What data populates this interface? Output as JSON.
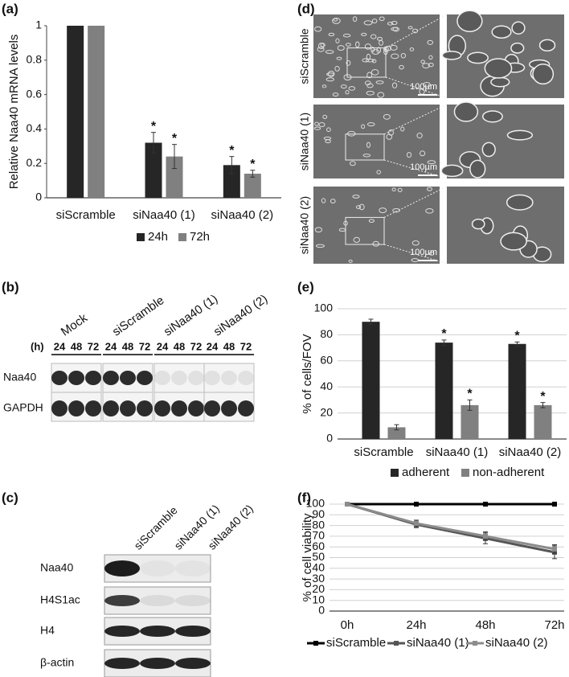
{
  "panels": {
    "labels": [
      "(a)",
      "(b)",
      "(c)",
      "(d)",
      "(e)",
      "(f)"
    ]
  },
  "blot_b": {
    "columns": [
      "Mock",
      "siScramble",
      "siNaa40 (1)",
      "siNaa40 (2)"
    ],
    "hours_label": "(h)",
    "times": [
      "24",
      "48",
      "72"
    ],
    "rows": [
      "Naa40",
      "GAPDH"
    ]
  },
  "blot_c": {
    "columns": [
      "siScramble",
      "siNaa40 (1)",
      "siNaa40 (2)"
    ],
    "rows": [
      "Naa40",
      "H4S1ac",
      "H4",
      "β-actin"
    ]
  },
  "micrographs": {
    "rows": [
      "siScramble",
      "siNaa40 (1)",
      "siNaa40 (2)"
    ],
    "scale_bar": "100µm"
  },
  "chart_data": [
    {
      "type": "bar",
      "y_label": "Relative Naa40 mRNA levels",
      "categories": [
        "siScramble",
        "siNaa40 (1)",
        "siNaa40 (2)"
      ],
      "series": [
        {
          "name": "24h",
          "color": "#262626",
          "values": [
            1,
            0.32,
            0.19
          ],
          "errors": [
            0,
            0.06,
            0.05
          ],
          "significance": [
            null,
            "*",
            "*"
          ]
        },
        {
          "name": "72h",
          "color": "#808080",
          "values": [
            1,
            0.24,
            0.14
          ],
          "errors": [
            0,
            0.07,
            0.02
          ],
          "significance": [
            null,
            "*",
            "*"
          ]
        }
      ],
      "ylim": [
        0,
        1
      ],
      "yticks": [
        0,
        0.2,
        0.4,
        0.6,
        0.8,
        1
      ],
      "grid": false,
      "legend": "bottom"
    },
    {
      "type": "bar",
      "y_label": "% of cells/FOV",
      "categories": [
        "siScramble",
        "siNaa40 (1)",
        "siNaa40 (2)"
      ],
      "series": [
        {
          "name": "adherent",
          "color": "#262626",
          "values": [
            90,
            74,
            73
          ],
          "errors": [
            2,
            2,
            1.5
          ],
          "significance": [
            null,
            "*",
            "*"
          ]
        },
        {
          "name": "non-adherent",
          "color": "#808080",
          "values": [
            9,
            26,
            26
          ],
          "errors": [
            2,
            4,
            2
          ],
          "significance": [
            null,
            "*",
            "*"
          ]
        }
      ],
      "ylim": [
        0,
        100
      ],
      "yticks": [
        0,
        20,
        40,
        60,
        80,
        100
      ],
      "grid": true,
      "legend": "bottom"
    },
    {
      "type": "line",
      "y_label": "% of cell viability",
      "categories": [
        "0h",
        "24h",
        "48h",
        "72h"
      ],
      "series": [
        {
          "name": "siScramble",
          "color": "#000000",
          "values": [
            100,
            100,
            100,
            100
          ],
          "errors": [
            0,
            0,
            0,
            0
          ]
        },
        {
          "name": "siNaa40 (1)",
          "color": "#555555",
          "values": [
            100,
            81,
            68,
            55
          ],
          "errors": [
            0,
            3,
            5,
            6
          ]
        },
        {
          "name": "siNaa40 (2)",
          "color": "#8c8c8c",
          "values": [
            100,
            82,
            70,
            58
          ],
          "errors": [
            0,
            3,
            4,
            4
          ]
        }
      ],
      "ylim": [
        0,
        100
      ],
      "yticks": [
        0,
        10,
        20,
        30,
        40,
        50,
        60,
        70,
        80,
        90,
        100
      ],
      "grid": true,
      "legend": "bottom"
    }
  ]
}
